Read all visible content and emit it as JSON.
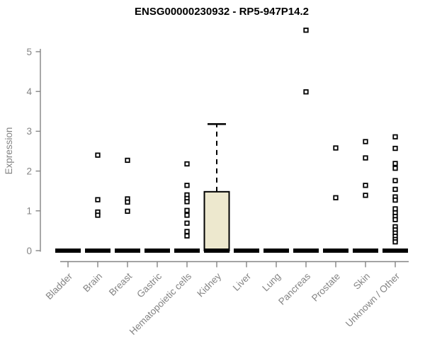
{
  "title": "ENSG00000230932 - RP5-947P14.2",
  "chart_data": {
    "type": "boxplot",
    "title": "ENSG00000230932 - RP5-947P14.2",
    "xlabel": "",
    "ylabel": "Expression",
    "ylim": [
      0,
      5.6
    ],
    "yticks": [
      0,
      1,
      2,
      3,
      4,
      5
    ],
    "grid": false,
    "legend": "none",
    "axis_color": "#848484",
    "box_fill": "#EDE8CE",
    "line_color": "#000000",
    "categories": [
      "Bladder",
      "Brain",
      "Breast",
      "Gastric",
      "Hematopoietic cells",
      "Kidney",
      "Liver",
      "Lung",
      "Pancreas",
      "Prostate",
      "Skin",
      "Unknown / Other"
    ],
    "boxes": [
      {
        "category": "Bladder",
        "median": 0,
        "q1": 0,
        "q3": 0,
        "whisker_low": 0,
        "whisker_high": 0,
        "outliers": []
      },
      {
        "category": "Brain",
        "median": 0,
        "q1": 0,
        "q3": 0,
        "whisker_low": 0,
        "whisker_high": 0,
        "outliers": [
          2.4,
          1.28,
          0.97,
          0.89
        ]
      },
      {
        "category": "Breast",
        "median": 0,
        "q1": 0,
        "q3": 0,
        "whisker_low": 0,
        "whisker_high": 0,
        "outliers": [
          2.27,
          1.3,
          1.22,
          0.99
        ]
      },
      {
        "category": "Gastric",
        "median": 0,
        "q1": 0,
        "q3": 0,
        "whisker_low": 0,
        "whisker_high": 0,
        "outliers": []
      },
      {
        "category": "Hematopoietic cells",
        "median": 0,
        "q1": 0,
        "q3": 0,
        "whisker_low": 0,
        "whisker_high": 0,
        "outliers": [
          2.18,
          1.64,
          1.4,
          1.31,
          1.23,
          1.01,
          0.89,
          0.69,
          0.48,
          0.37
        ]
      },
      {
        "category": "Kidney",
        "median": 0,
        "q1": 0,
        "q3": 1.48,
        "whisker_low": 0,
        "whisker_high": 3.18,
        "outliers": []
      },
      {
        "category": "Liver",
        "median": 0,
        "q1": 0,
        "q3": 0,
        "whisker_low": 0,
        "whisker_high": 0,
        "outliers": []
      },
      {
        "category": "Lung",
        "median": 0,
        "q1": 0,
        "q3": 0,
        "whisker_low": 0,
        "whisker_high": 0,
        "outliers": []
      },
      {
        "category": "Pancreas",
        "median": 0,
        "q1": 0,
        "q3": 0,
        "whisker_low": 0,
        "whisker_high": 0,
        "outliers": [
          5.54,
          3.99
        ]
      },
      {
        "category": "Prostate",
        "median": 0,
        "q1": 0,
        "q3": 0,
        "whisker_low": 0,
        "whisker_high": 0,
        "outliers": [
          2.58,
          1.33
        ]
      },
      {
        "category": "Skin",
        "median": 0,
        "q1": 0,
        "q3": 0,
        "whisker_low": 0,
        "whisker_high": 0,
        "outliers": [
          2.74,
          2.33,
          1.64,
          1.39
        ]
      },
      {
        "category": "Unknown / Other",
        "median": 0,
        "q1": 0,
        "q3": 0,
        "whisker_low": 0,
        "whisker_high": 0,
        "outliers": [
          2.86,
          2.57,
          2.19,
          2.07,
          1.76,
          1.54,
          1.35,
          1.27,
          1.05,
          0.95,
          0.86,
          0.78,
          0.6,
          0.52,
          0.44,
          0.36,
          0.28,
          0.22
        ]
      }
    ]
  }
}
